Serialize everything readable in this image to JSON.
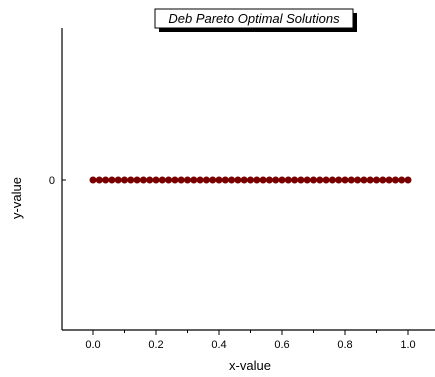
{
  "chart_data": {
    "type": "scatter",
    "title": "Deb Pareto Optimal Solutions",
    "xlabel": "x-value",
    "ylabel": "y-value",
    "xlim": [
      -0.1,
      1.08
    ],
    "x_ticks": [
      0.0,
      0.2,
      0.4,
      0.6,
      0.8,
      1.0
    ],
    "x_tick_labels": [
      "0.0",
      "0.2",
      "0.4",
      "0.6",
      "0.8",
      "1.0"
    ],
    "y_ticks": [
      0
    ],
    "y_tick_labels": [
      "0"
    ],
    "grid": false,
    "series": [
      {
        "color": "#7a0000",
        "x": [
          0.0,
          0.02,
          0.04,
          0.06,
          0.08,
          0.1,
          0.12,
          0.14,
          0.16,
          0.18,
          0.2,
          0.22,
          0.24,
          0.26,
          0.28,
          0.3,
          0.32,
          0.34,
          0.36,
          0.38,
          0.4,
          0.42,
          0.44,
          0.46,
          0.48,
          0.5,
          0.52,
          0.54,
          0.56,
          0.58,
          0.6,
          0.62,
          0.64,
          0.66,
          0.68,
          0.7,
          0.72,
          0.74,
          0.76,
          0.78,
          0.8,
          0.82,
          0.84,
          0.86,
          0.88,
          0.9,
          0.92,
          0.94,
          0.96,
          0.98,
          1.0
        ],
        "y": [
          0,
          0,
          0,
          0,
          0,
          0,
          0,
          0,
          0,
          0,
          0,
          0,
          0,
          0,
          0,
          0,
          0,
          0,
          0,
          0,
          0,
          0,
          0,
          0,
          0,
          0,
          0,
          0,
          0,
          0,
          0,
          0,
          0,
          0,
          0,
          0,
          0,
          0,
          0,
          0,
          0,
          0,
          0,
          0,
          0,
          0,
          0,
          0,
          0,
          0,
          0
        ]
      }
    ]
  }
}
